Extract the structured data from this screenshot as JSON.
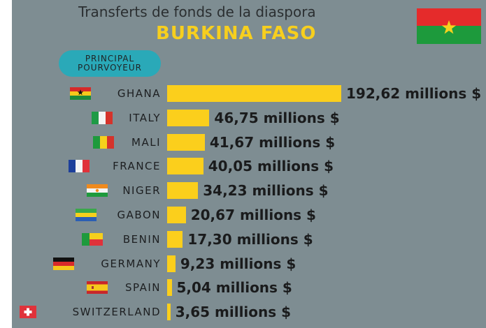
{
  "header": {
    "title": "Transferts de fonds de la diaspora",
    "subtitle": "BURKINA FASO"
  },
  "badge": {
    "line1": "PRINCIPAL",
    "line2": "POURVOYEUR"
  },
  "chart_data": {
    "type": "bar",
    "orientation": "horizontal",
    "title": "Transferts de fonds de la diaspora",
    "subtitle": "BURKINA FASO",
    "categories": [
      "GHANA",
      "ITALY",
      "MALI",
      "FRANCE",
      "NIGER",
      "GABON",
      "BENIN",
      "GERMANY",
      "SPAIN",
      "SWITZERLAND"
    ],
    "values": [
      192.62,
      46.75,
      41.67,
      40.05,
      34.23,
      20.67,
      17.3,
      9.23,
      5.04,
      3.65
    ],
    "value_labels": [
      "192,62 millions $",
      "46,75 millions $",
      "41,67 millions $",
      "40,05 millions $",
      "34,23 millions $",
      "20,67 millions $",
      "17,30 millions $",
      "9,23 millions $",
      "5,04 millions $",
      "3,65 millions $"
    ],
    "bar_color": "#fbcf1c"
  },
  "colors": {
    "background": "#7e8d92",
    "accent": "#f7cf1e",
    "badge": "#2aa9b8"
  }
}
